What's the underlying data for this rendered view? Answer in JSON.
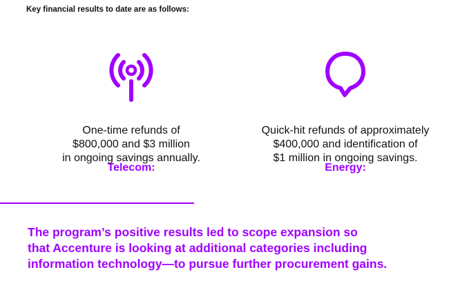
{
  "colors": {
    "accent": "#a100ff",
    "text": "#111111"
  },
  "intro": "Key financial results to date are as follows:",
  "telecom": {
    "icon": "signal-tower-icon",
    "title": "Telecom:",
    "lines": [
      "One-time refunds of",
      "$800,000 and $3 million",
      "in ongoing savings annually."
    ]
  },
  "energy": {
    "icon": "lightbulb-icon",
    "title": "Energy:",
    "lines": [
      "Quick-hit refunds of approximately",
      "$400,000 and identification of",
      "$1 million in ongoing savings."
    ]
  },
  "summary": {
    "lines": [
      "The program’s positive results led to scope expansion so",
      "that Accenture is looking at additional categories including",
      "information technology—to pursue further procurement gains."
    ]
  }
}
